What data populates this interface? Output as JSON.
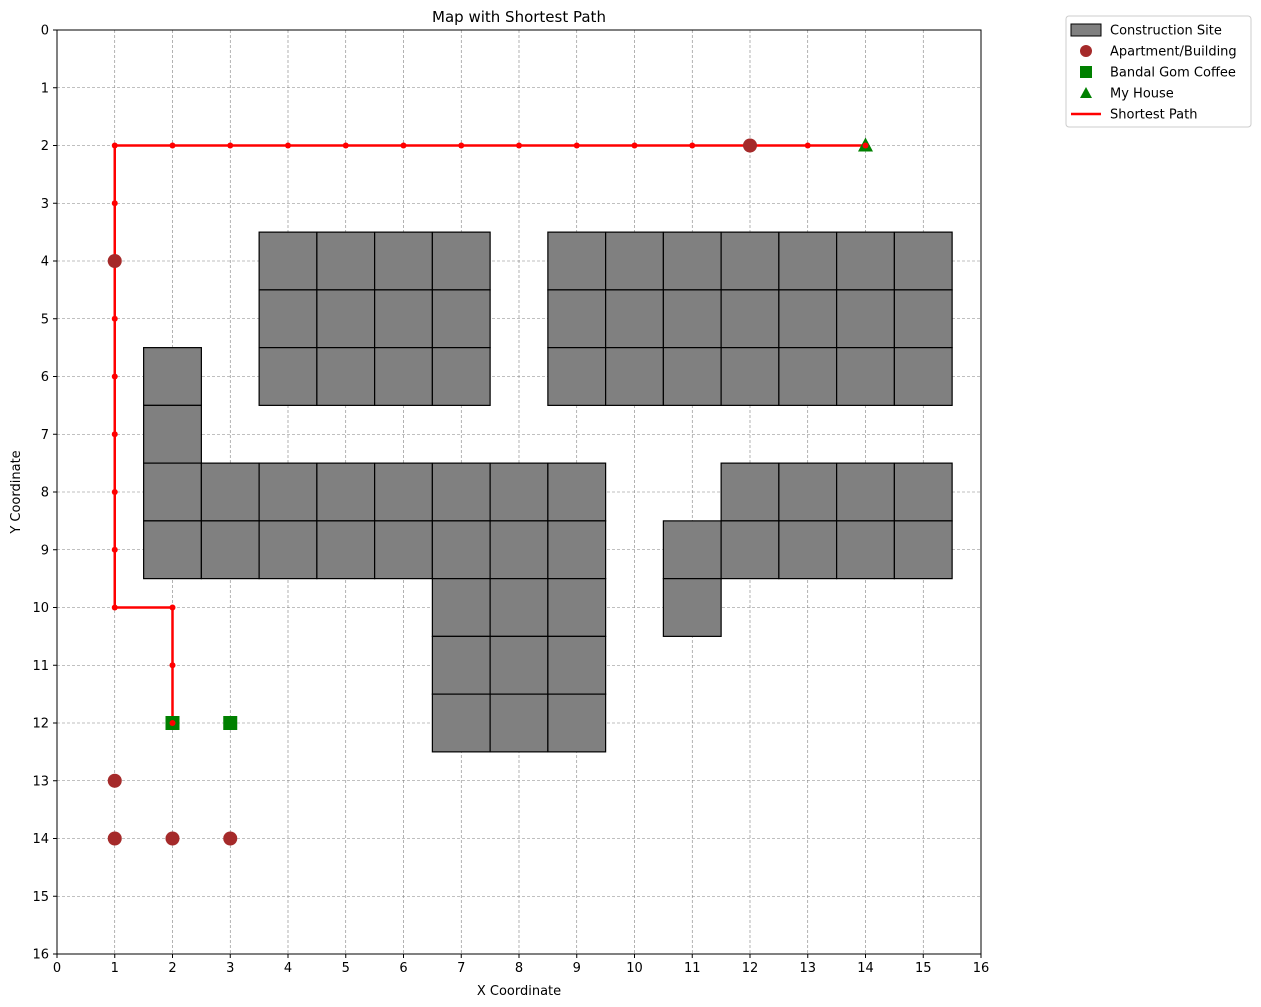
{
  "chart_data": {
    "type": "scatter",
    "title": "Map with Shortest Path",
    "xlabel": "X Coordinate",
    "ylabel": "Y Coordinate",
    "xlim": [
      0,
      16
    ],
    "ylim": [
      0,
      16
    ],
    "y_inverted": true,
    "xticks": [
      0,
      1,
      2,
      3,
      4,
      5,
      6,
      7,
      8,
      9,
      10,
      11,
      12,
      13,
      14,
      15,
      16
    ],
    "yticks": [
      0,
      1,
      2,
      3,
      4,
      5,
      6,
      7,
      8,
      9,
      10,
      11,
      12,
      13,
      14,
      15,
      16
    ],
    "grid": true,
    "legend_position": "outside-top-right",
    "legend": [
      {
        "key": "construction",
        "label": "Construction Site"
      },
      {
        "key": "apartment",
        "label": "Apartment/Building"
      },
      {
        "key": "coffee",
        "label": "Bandal Gom Coffee"
      },
      {
        "key": "house",
        "label": "My House"
      },
      {
        "key": "path",
        "label": "Shortest Path"
      }
    ],
    "colors": {
      "construction": "#808080",
      "apartment": "#a52a2a",
      "coffee": "#008000",
      "house": "#008000",
      "path": "#ff0000",
      "grid": "#808080"
    },
    "construction_sites": [
      [
        4,
        4
      ],
      [
        5,
        4
      ],
      [
        6,
        4
      ],
      [
        7,
        4
      ],
      [
        4,
        5
      ],
      [
        5,
        5
      ],
      [
        6,
        5
      ],
      [
        7,
        5
      ],
      [
        4,
        6
      ],
      [
        5,
        6
      ],
      [
        6,
        6
      ],
      [
        7,
        6
      ],
      [
        9,
        4
      ],
      [
        10,
        4
      ],
      [
        11,
        4
      ],
      [
        12,
        4
      ],
      [
        13,
        4
      ],
      [
        14,
        4
      ],
      [
        15,
        4
      ],
      [
        9,
        5
      ],
      [
        10,
        5
      ],
      [
        11,
        5
      ],
      [
        12,
        5
      ],
      [
        13,
        5
      ],
      [
        14,
        5
      ],
      [
        15,
        5
      ],
      [
        9,
        6
      ],
      [
        10,
        6
      ],
      [
        11,
        6
      ],
      [
        12,
        6
      ],
      [
        13,
        6
      ],
      [
        14,
        6
      ],
      [
        15,
        6
      ],
      [
        2,
        6
      ],
      [
        2,
        7
      ],
      [
        2,
        8
      ],
      [
        3,
        8
      ],
      [
        4,
        8
      ],
      [
        5,
        8
      ],
      [
        6,
        8
      ],
      [
        7,
        8
      ],
      [
        8,
        8
      ],
      [
        9,
        8
      ],
      [
        2,
        9
      ],
      [
        3,
        9
      ],
      [
        4,
        9
      ],
      [
        5,
        9
      ],
      [
        6,
        9
      ],
      [
        7,
        9
      ],
      [
        8,
        9
      ],
      [
        9,
        9
      ],
      [
        7,
        10
      ],
      [
        8,
        10
      ],
      [
        9,
        10
      ],
      [
        7,
        11
      ],
      [
        8,
        11
      ],
      [
        9,
        11
      ],
      [
        7,
        12
      ],
      [
        8,
        12
      ],
      [
        9,
        12
      ],
      [
        12,
        8
      ],
      [
        13,
        8
      ],
      [
        14,
        8
      ],
      [
        15,
        8
      ],
      [
        11,
        9
      ],
      [
        12,
        9
      ],
      [
        13,
        9
      ],
      [
        14,
        9
      ],
      [
        15,
        9
      ],
      [
        11,
        10
      ]
    ],
    "apartments": [
      [
        12,
        2
      ],
      [
        1,
        4
      ],
      [
        1,
        13
      ],
      [
        1,
        14
      ],
      [
        2,
        14
      ],
      [
        3,
        14
      ]
    ],
    "coffee_shops": [
      [
        2,
        12
      ],
      [
        3,
        12
      ]
    ],
    "house": [
      [
        14,
        2
      ]
    ],
    "shortest_path": [
      [
        2,
        12
      ],
      [
        2,
        11
      ],
      [
        2,
        10
      ],
      [
        1,
        10
      ],
      [
        1,
        9
      ],
      [
        1,
        8
      ],
      [
        1,
        7
      ],
      [
        1,
        6
      ],
      [
        1,
        5
      ],
      [
        1,
        4
      ],
      [
        1,
        3
      ],
      [
        1,
        2
      ],
      [
        2,
        2
      ],
      [
        3,
        2
      ],
      [
        4,
        2
      ],
      [
        5,
        2
      ],
      [
        6,
        2
      ],
      [
        7,
        2
      ],
      [
        8,
        2
      ],
      [
        9,
        2
      ],
      [
        10,
        2
      ],
      [
        11,
        2
      ],
      [
        12,
        2
      ],
      [
        13,
        2
      ],
      [
        14,
        2
      ]
    ]
  }
}
